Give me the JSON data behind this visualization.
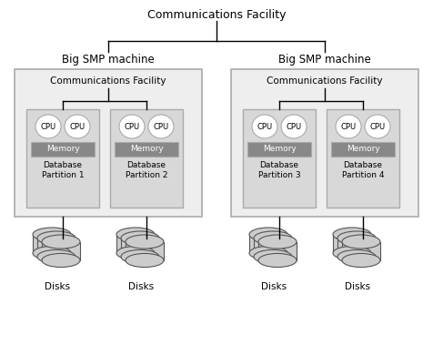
{
  "bg_color": "#ffffff",
  "border_color": "#aaaaaa",
  "smp_box_fill": "#eeeeee",
  "part_box_fill": "#d8d8d8",
  "memory_fill": "#888888",
  "cpu_fill": "#ffffff",
  "disk_fill": "#cccccc",
  "disk_edge": "#555555",
  "line_color": "#000000",
  "text_color": "#000000",
  "top_label": "Communications Facility",
  "smp_label": "Big SMP machine",
  "comm_label": "Communications Facility",
  "partitions": [
    "Database\nPartition 1",
    "Database\nPartition 2",
    "Database\nPartition 3",
    "Database\nPartition 4"
  ],
  "disk_label": "Disks",
  "fig_w": 4.76,
  "fig_h": 3.79,
  "dpi": 100
}
